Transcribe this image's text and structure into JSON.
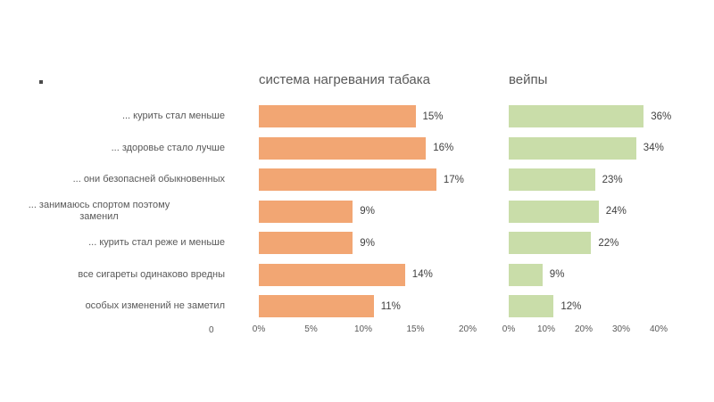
{
  "slide": {
    "background_color": "#ffffff",
    "stray_axis_zero_label": "0"
  },
  "chart_data": {
    "type": "bar",
    "orientation": "horizontal",
    "title": "",
    "xlabel": "",
    "ylabel": "",
    "grid": false,
    "legend": false,
    "value_suffix": "%",
    "categories": [
      [
        "... курить стал меньше"
      ],
      [
        "... здоровье стало лучше"
      ],
      [
        "... они безопасней обыкновенных"
      ],
      [
        "... занимаюсь спортом поэтому",
        "заменил"
      ],
      [
        "... курить стал реже и меньше"
      ],
      [
        "все сигареты одинаково вредны"
      ],
      [
        "особых изменений не заметил"
      ]
    ],
    "panels": [
      {
        "title": "система нагревания табака",
        "bar_color": "#F2A673",
        "values": [
          15,
          16,
          17,
          9,
          9,
          14,
          11
        ],
        "axis_min": 0,
        "axis_max": 20,
        "ticks": [
          "0%",
          "5%",
          "10%",
          "15%",
          "20%"
        ]
      },
      {
        "title": "вейпы",
        "bar_color": "#C9DDA9",
        "values": [
          36,
          34,
          23,
          24,
          22,
          9,
          12
        ],
        "axis_min": 0,
        "axis_max": 40,
        "ticks": [
          "0%",
          "10%",
          "20%",
          "30%",
          "40%"
        ]
      }
    ]
  },
  "text_colors": {
    "title": "#595959",
    "category_label": "#595959",
    "value_label": "#404040",
    "tick_label": "#595959"
  }
}
